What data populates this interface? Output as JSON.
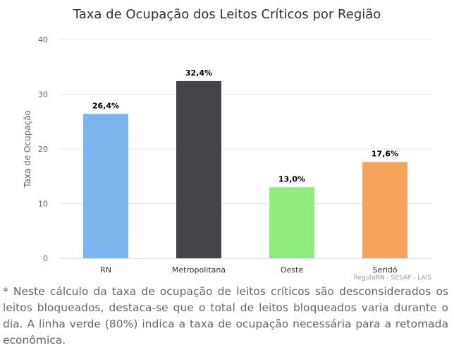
{
  "chart_data": {
    "type": "bar",
    "title": "Taxa de Ocupação dos Leitos Críticos por Região",
    "ylabel": "Taxa de Ocupação",
    "xlabel": "",
    "ylim": [
      0,
      40
    ],
    "yticks": [
      "0",
      "10",
      "20",
      "30",
      "40"
    ],
    "grid": true,
    "categories": [
      "RN",
      "Metropolitana",
      "Oeste",
      "Seridó"
    ],
    "values": [
      26.4,
      32.4,
      13.0,
      17.6
    ],
    "data_labels": [
      "26,4%",
      "32,4%",
      "13,0%",
      "17,6%"
    ],
    "colors": [
      "#7cb5ec",
      "#434348",
      "#90ed7d",
      "#f7a35c"
    ],
    "credits": "RegulaRN - SESAP - LAIS"
  },
  "footnote": "* Neste cálculo da taxa de ocupação de leitos críticos são desconsiderados os leitos bloqueados, destaca-se que o total de leitos bloqueados varia durante o dia. A linha verde (80%) indica a taxa de ocupação necessária para a retomada econômica."
}
